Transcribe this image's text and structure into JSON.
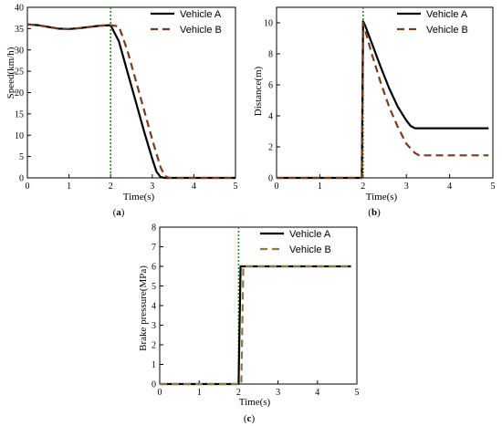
{
  "chart_data": [
    {
      "id": "a",
      "type": "line",
      "caption": "a",
      "xlabel": "Time(s)",
      "ylabel": "Speed(km/h)",
      "xlim": [
        0,
        5
      ],
      "ylim": [
        0,
        40
      ],
      "xticks": [
        "0",
        "1",
        "2",
        "3",
        "4",
        "5"
      ],
      "yticks": [
        "0",
        "5",
        "10",
        "15",
        "20",
        "25",
        "30",
        "35",
        "40"
      ],
      "legend_position": "top-right",
      "vline_x": 2.0,
      "series": [
        {
          "name": "Vehicle A",
          "style": "solid",
          "color": "#000000",
          "x": [
            0,
            0.25,
            0.5,
            0.75,
            1.0,
            1.25,
            1.5,
            1.75,
            2.0,
            2.2,
            2.4,
            2.6,
            2.8,
            3.0,
            3.1,
            3.2,
            3.3,
            4.0,
            5.0
          ],
          "y": [
            36,
            35.8,
            35.4,
            35.0,
            34.9,
            35.1,
            35.4,
            35.7,
            35.8,
            32,
            25,
            18,
            11,
            4.5,
            1.5,
            0.2,
            0,
            0,
            0
          ]
        },
        {
          "name": "Vehicle B",
          "style": "dashed",
          "color": "#7a3b1c",
          "x": [
            0,
            0.25,
            0.5,
            0.75,
            1.0,
            1.25,
            1.5,
            1.75,
            2.0,
            2.2,
            2.4,
            2.6,
            2.8,
            3.0,
            3.2,
            3.3,
            3.4,
            4.0,
            5.0
          ],
          "y": [
            36,
            35.8,
            35.4,
            35.0,
            34.9,
            35.1,
            35.4,
            35.7,
            35.8,
            35.5,
            30,
            23,
            16,
            9,
            2.5,
            0.5,
            0,
            0,
            0
          ]
        }
      ]
    },
    {
      "id": "b",
      "type": "line",
      "caption": "b",
      "xlabel": "Time(s)",
      "ylabel": "Distance(m)",
      "xlim": [
        0,
        5
      ],
      "ylim": [
        0,
        11
      ],
      "xticks": [
        "0",
        "1",
        "2",
        "3",
        "4",
        "5"
      ],
      "yticks": [
        "0",
        "2",
        "4",
        "6",
        "8",
        "10"
      ],
      "legend_position": "top-right",
      "vline_x": 2.0,
      "series": [
        {
          "name": "Vehicle A",
          "style": "solid",
          "color": "#000000",
          "x": [
            0,
            1.97,
            2.0,
            2.05,
            2.2,
            2.4,
            2.6,
            2.8,
            3.0,
            3.1,
            3.2,
            3.3,
            3.6,
            4.0,
            4.5,
            4.9
          ],
          "y": [
            0,
            0,
            10.1,
            9.8,
            8.7,
            7.2,
            5.8,
            4.6,
            3.7,
            3.35,
            3.2,
            3.2,
            3.2,
            3.2,
            3.2,
            3.2
          ]
        },
        {
          "name": "Vehicle B",
          "style": "dashed",
          "color": "#7a3b1c",
          "x": [
            0,
            1.97,
            2.0,
            2.05,
            2.2,
            2.4,
            2.6,
            2.8,
            3.0,
            3.2,
            3.3,
            3.6,
            4.0,
            4.5,
            4.9
          ],
          "y": [
            0,
            0,
            10.0,
            9.5,
            8.0,
            6.2,
            4.6,
            3.3,
            2.2,
            1.6,
            1.45,
            1.45,
            1.45,
            1.45,
            1.45
          ]
        }
      ]
    },
    {
      "id": "c",
      "type": "line",
      "caption": "c",
      "xlabel": "Time(s)",
      "ylabel": "Brake pressure(MPa)",
      "xlim": [
        0,
        5
      ],
      "ylim": [
        0,
        8
      ],
      "xticks": [
        "0",
        "1",
        "2",
        "3",
        "4",
        "5"
      ],
      "yticks": [
        "0",
        "1",
        "2",
        "3",
        "4",
        "5",
        "6",
        "7",
        "8"
      ],
      "legend_position": "top-right",
      "vline_x": 2.0,
      "series": [
        {
          "name": "Vehicle A",
          "style": "solid",
          "color": "#000000",
          "x": [
            0,
            2.0,
            2.05,
            2.2,
            3.0,
            4.0,
            4.85
          ],
          "y": [
            0,
            0,
            6.0,
            6.0,
            6.0,
            6.0,
            6.0
          ]
        },
        {
          "name": "Vehicle B",
          "style": "dashed",
          "color": "#8a7a45",
          "x": [
            0,
            2.07,
            2.12,
            2.25,
            3.0,
            4.0,
            4.85
          ],
          "y": [
            0,
            0,
            6.0,
            6.0,
            6.0,
            6.0,
            6.0
          ]
        }
      ]
    }
  ],
  "colors": {
    "vline": "#2e8b2e",
    "axis": "#000000"
  }
}
